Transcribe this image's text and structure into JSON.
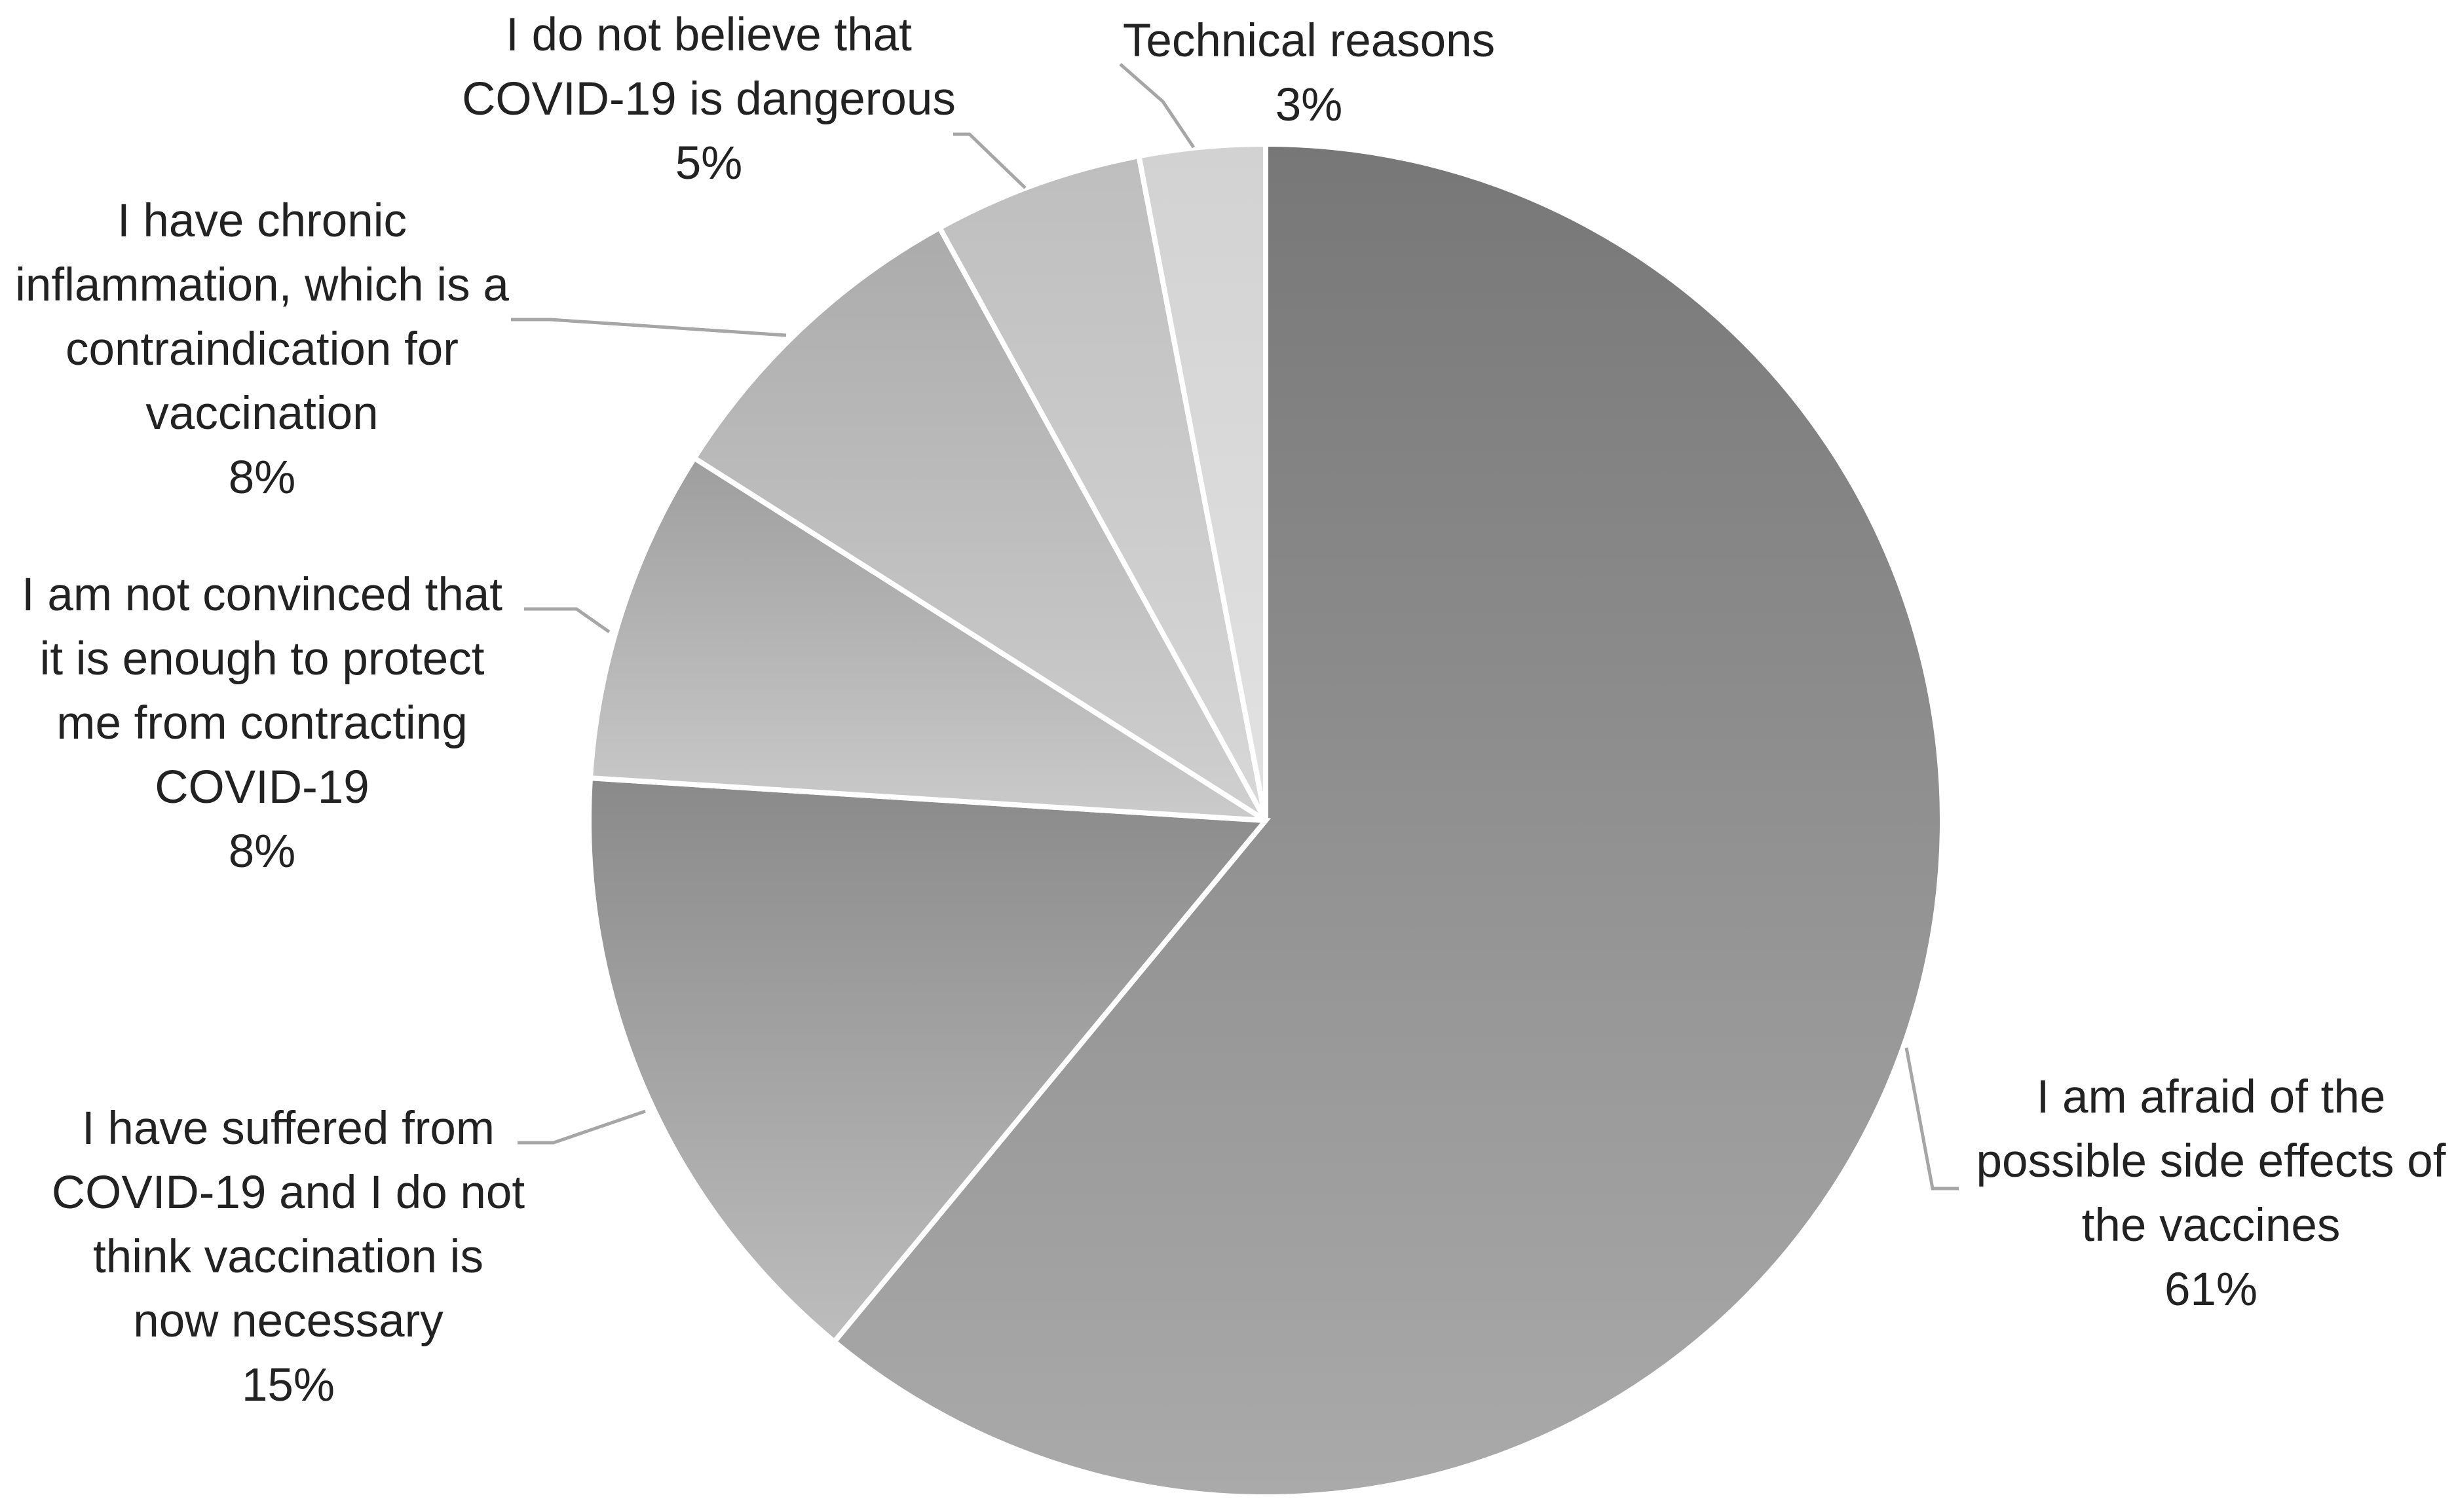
{
  "chart_data": {
    "type": "pie",
    "title": "",
    "slices": [
      {
        "label": [
          "I am afraid of the",
          "possible side effects of",
          "the vaccines"
        ],
        "value": 61,
        "display": "61%",
        "color_top": "#777777",
        "color_bottom": "#aaaaaa"
      },
      {
        "label": [
          "I have suffered from",
          "COVID-19 and I do not",
          "think vaccination is",
          "now necessary"
        ],
        "value": 15,
        "display": "15%",
        "color_top": "#8a8a8a",
        "color_bottom": "#bdbdbd"
      },
      {
        "label": [
          "I am not convinced that",
          "it is enough to protect",
          "me from contracting",
          "COVID-19"
        ],
        "value": 8,
        "display": "8%",
        "color_top": "#9e9e9e",
        "color_bottom": "#cbcbcb"
      },
      {
        "label": [
          "I have chronic",
          "inflammation, which is a",
          "contraindication for",
          "vaccination"
        ],
        "value": 8,
        "display": "8%",
        "color_top": "#ababab",
        "color_bottom": "#d0d0d0"
      },
      {
        "label": [
          "I do not believe that",
          "COVID-19 is dangerous"
        ],
        "value": 5,
        "display": "5%",
        "color_top": "#bebebe",
        "color_bottom": "#d8d8d8"
      },
      {
        "label": [
          "Technical reasons"
        ],
        "value": 3,
        "display": "3%",
        "color_top": "#d2d2d2",
        "color_bottom": "#e2e2e2"
      }
    ]
  }
}
